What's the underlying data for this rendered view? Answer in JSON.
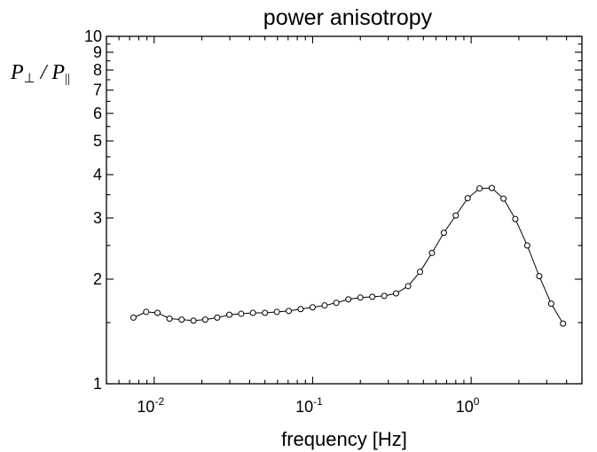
{
  "chart_data": {
    "type": "line",
    "title": "power anisotropy",
    "xlabel": "frequency [Hz]",
    "ylabel": {
      "main": "P",
      "sub_perp": "⊥",
      "separator": " / ",
      "sub_par": "||"
    },
    "x_scale": "log",
    "y_scale": "log",
    "xlim": [
      0.005,
      5
    ],
    "ylim": [
      1,
      10
    ],
    "grid": false,
    "legend": "none",
    "x_ticks": [
      {
        "value": 0.01,
        "base": "10",
        "exp": "-2"
      },
      {
        "value": 0.1,
        "base": "10",
        "exp": "-1"
      },
      {
        "value": 1,
        "base": "10",
        "exp": "0"
      }
    ],
    "y_ticks": [
      {
        "value": 1,
        "label": "1"
      },
      {
        "value": 2,
        "label": "2"
      },
      {
        "value": 3,
        "label": "3"
      },
      {
        "value": 4,
        "label": "4"
      },
      {
        "value": 5,
        "label": "5"
      },
      {
        "value": 6,
        "label": "6"
      },
      {
        "value": 7,
        "label": "7"
      },
      {
        "value": 8,
        "label": "8"
      },
      {
        "value": 9,
        "label": "9"
      },
      {
        "value": 10,
        "label": "10"
      }
    ],
    "series": [
      {
        "x": [
          0.0074,
          0.0089,
          0.0105,
          0.0125,
          0.0149,
          0.0177,
          0.021,
          0.025,
          0.0298,
          0.0354,
          0.042,
          0.05,
          0.0595,
          0.0707,
          0.084,
          0.1,
          0.119,
          0.141,
          0.168,
          0.2,
          0.238,
          0.283,
          0.336,
          0.4,
          0.476,
          0.566,
          0.673,
          0.8,
          0.951,
          1.13,
          1.35,
          1.6,
          1.9,
          2.26,
          2.69,
          3.2,
          3.8
        ],
        "y": [
          1.55,
          1.61,
          1.6,
          1.54,
          1.53,
          1.52,
          1.53,
          1.55,
          1.58,
          1.59,
          1.6,
          1.6,
          1.61,
          1.62,
          1.64,
          1.66,
          1.68,
          1.71,
          1.75,
          1.77,
          1.78,
          1.79,
          1.82,
          1.91,
          2.1,
          2.38,
          2.72,
          3.05,
          3.42,
          3.65,
          3.66,
          3.41,
          2.98,
          2.5,
          2.04,
          1.7,
          1.49
        ]
      }
    ]
  }
}
